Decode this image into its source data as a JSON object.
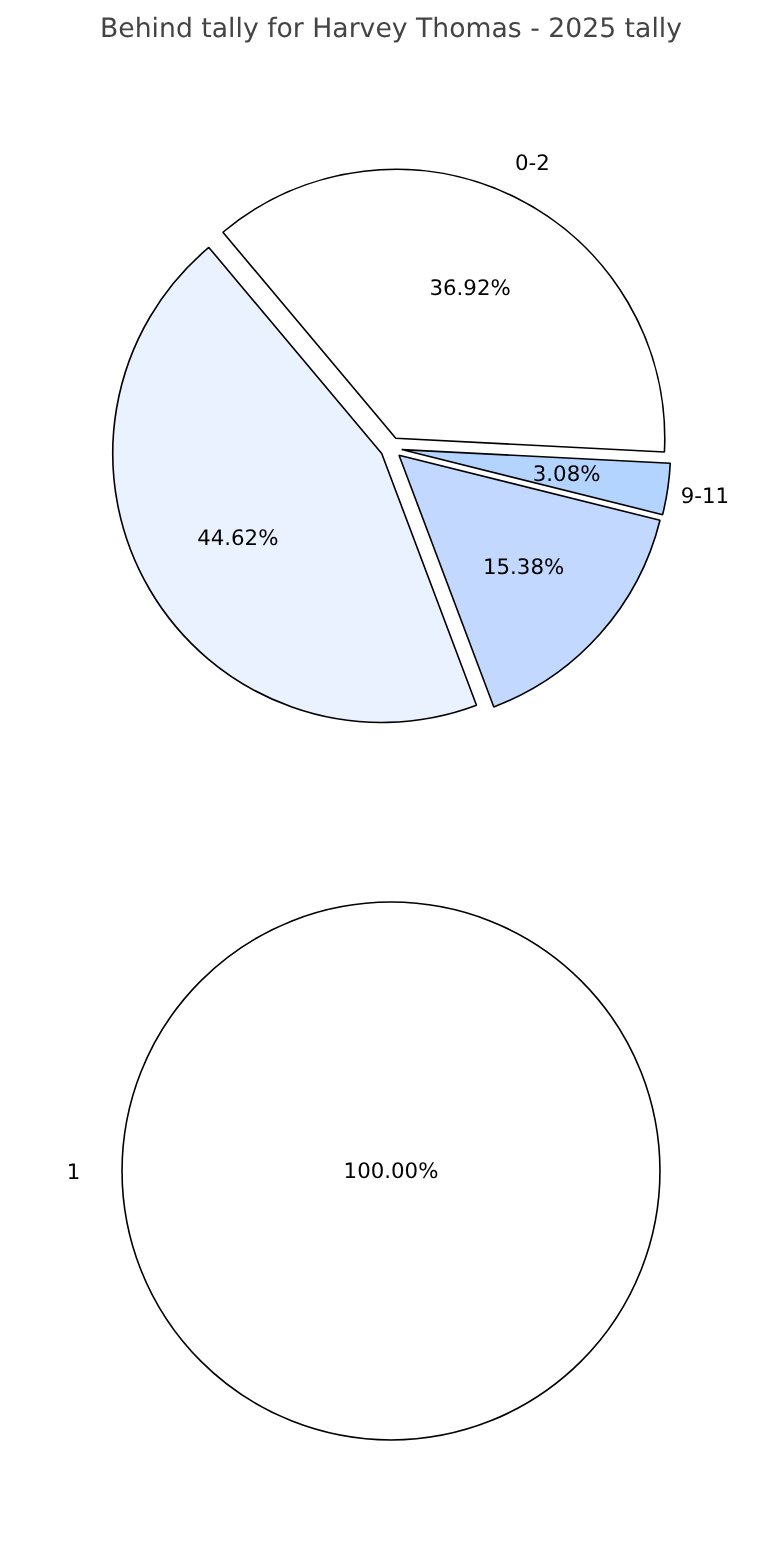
{
  "chart_data": [
    {
      "type": "pie",
      "title": "Behind tally for Harvey Thomas - 2025 tally",
      "categories": [
        "0-2",
        "9-11",
        null,
        null
      ],
      "values": [
        36.92,
        3.08,
        15.38,
        44.62
      ],
      "colors": [
        "#ffffff",
        "#b3d4ff",
        "#c2d8ff",
        "#ebf2ff"
      ],
      "value_labels": [
        "36.92%",
        "3.08%",
        "15.38%",
        "44.62%"
      ],
      "legend": false
    },
    {
      "type": "pie",
      "categories": [
        "1"
      ],
      "values": [
        100
      ],
      "colors": [
        "#ffffff"
      ],
      "value_labels": [
        "100.00%"
      ],
      "legend": false
    }
  ]
}
